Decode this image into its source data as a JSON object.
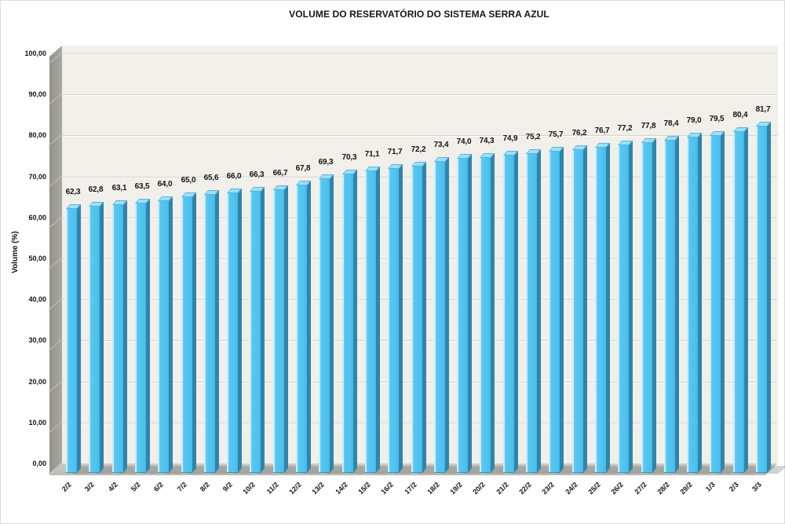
{
  "title": "VOLUME DO RESERVATÓRIO DO SISTEMA SERRA AZUL",
  "y_axis": {
    "title": "Volume (%)"
  },
  "colors": {
    "bar_front": "#54C5F1",
    "bar_side": "#3184A9",
    "bar_top": "#9FDFF7",
    "plot_background": "#F1EFE9",
    "gridline": "#D5D3CD",
    "wall_gray": "#9C9A94",
    "floor_gray": "#C5C3BD",
    "text": "#141414"
  },
  "chart_data": {
    "type": "bar",
    "title": "VOLUME DO RESERVATÓRIO DO SISTEMA SERRA AZUL",
    "xlabel": "",
    "ylabel": "Volume (%)",
    "ylim": [
      0,
      100
    ],
    "grid": true,
    "legend": false,
    "style": "3d-column",
    "categories": [
      "2/2",
      "3/2",
      "4/2",
      "5/2",
      "6/2",
      "7/2",
      "8/2",
      "9/2",
      "10/2",
      "11/2",
      "12/2",
      "13/2",
      "14/2",
      "15/2",
      "16/2",
      "17/2",
      "18/2",
      "19/2",
      "20/2",
      "21/2",
      "22/2",
      "23/2",
      "24/2",
      "25/2",
      "26/2",
      "27/2",
      "28/2",
      "29/2",
      "1/3",
      "2/3",
      "3/3"
    ],
    "values": [
      62.3,
      62.8,
      63.1,
      63.5,
      64.0,
      65.0,
      65.6,
      66.0,
      66.3,
      66.7,
      67.8,
      69.3,
      70.3,
      71.1,
      71.7,
      72.2,
      73.4,
      74.0,
      74.3,
      74.9,
      75.2,
      75.7,
      76.2,
      76.7,
      77.2,
      77.8,
      78.4,
      79.0,
      79.5,
      80.4,
      81.7
    ],
    "value_labels": [
      "62,3",
      "62,8",
      "63,1",
      "63,5",
      "64,0",
      "65,0",
      "65,6",
      "66,0",
      "66,3",
      "66,7",
      "67,8",
      "69,3",
      "70,3",
      "71,1",
      "71,7",
      "72,2",
      "73,4",
      "74,0",
      "74,3",
      "74,9",
      "75,2",
      "75,7",
      "76,2",
      "76,7",
      "77,2",
      "77,8",
      "78,4",
      "79,0",
      "79,5",
      "80,4",
      "81,7"
    ],
    "y_ticks": [
      {
        "v": 0,
        "label": "0,00"
      },
      {
        "v": 10,
        "label": "10,00"
      },
      {
        "v": 20,
        "label": "20,00"
      },
      {
        "v": 30,
        "label": "30,00"
      },
      {
        "v": 40,
        "label": "40,00"
      },
      {
        "v": 50,
        "label": "50,00"
      },
      {
        "v": 60,
        "label": "60,00"
      },
      {
        "v": 70,
        "label": "70,00"
      },
      {
        "v": 80,
        "label": "80,00"
      },
      {
        "v": 90,
        "label": "90,00"
      },
      {
        "v": 100,
        "label": "100,00"
      }
    ]
  }
}
